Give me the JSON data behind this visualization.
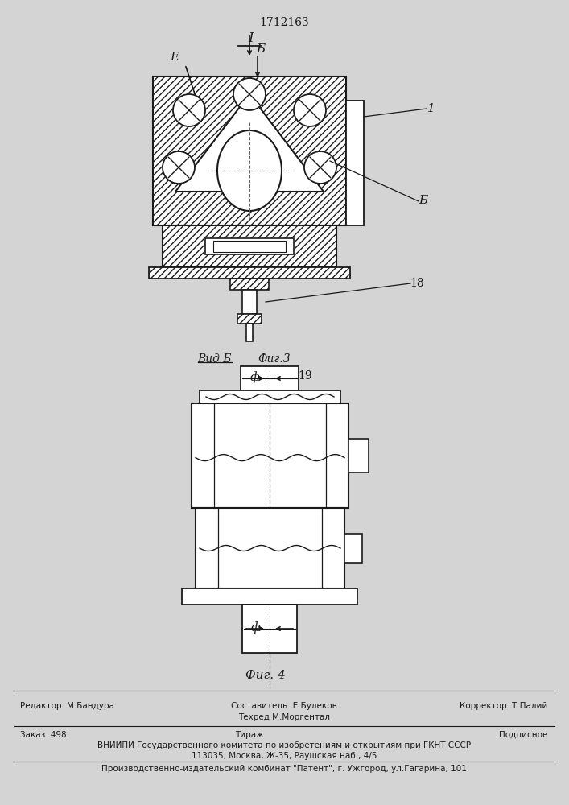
{
  "bg_color": "#d8d8d8",
  "line_color": "#1a1a1a",
  "patent_number": "1712163",
  "label_I": "I",
  "label_E": "E",
  "label_B_arrow": "Б",
  "label_B_side": "Б",
  "label_18": "18",
  "label_19": "19",
  "label_1": "1",
  "label_phi1": "ф",
  "label_phi2": "ф",
  "fig3_label_vid": "Вид Б",
  "fig3_label_fig": "Фиг.3",
  "fig4_label": "Фиг. 4",
  "footer_editor": "Редактор  М.Бандура",
  "footer_sostavitel": "Составитель  Е.Булеков",
  "footer_tekhred": "Техред М.Моргентал",
  "footer_korrektor": "Корректор  Т.Палий",
  "footer_zakaz": "Заказ  498",
  "footer_tirazh": "Тираж",
  "footer_podpisnoe": "Подписное",
  "footer_vniiipi": "ВНИИПИ Государственного комитета по изобретениям и открытиям при ГКНТ СССР",
  "footer_address": "113035, Москва, Ж-35, Раушская наб., 4/5",
  "footer_kombinat": "Производственно-издательский комбинат \"Патент\", г. Ужгород, ул.Гагарина, 101"
}
